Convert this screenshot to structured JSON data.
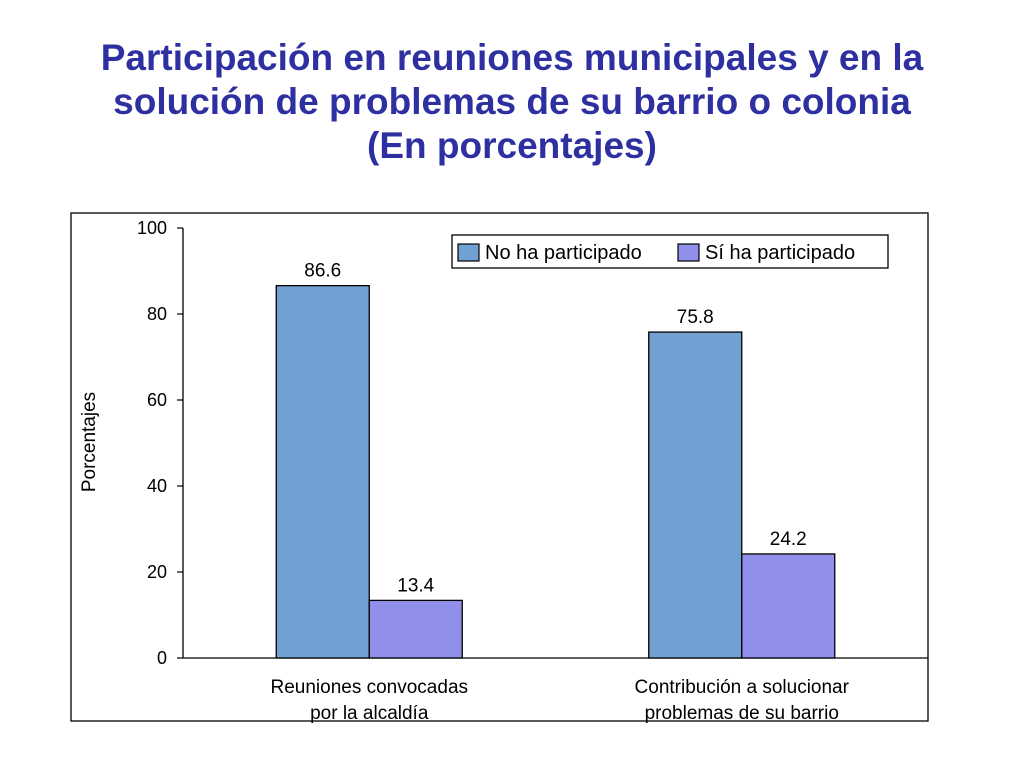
{
  "title": {
    "line1": "Participación en reuniones municipales y en la",
    "line2": "solución de problemas de su barrio o colonia",
    "line3": "(En porcentajes)"
  },
  "chart_data": {
    "type": "bar",
    "title": "",
    "xlabel": "",
    "ylabel": "Porcentajes",
    "ylim": [
      0,
      100
    ],
    "yticks": [
      "0",
      "20",
      "40",
      "60",
      "80",
      "100"
    ],
    "categories": [
      [
        "Reuniones convocadas",
        "por la alcaldía"
      ],
      [
        "Contribución a solucionar",
        "problemas de su barrio"
      ]
    ],
    "series": [
      {
        "name": "No ha participado",
        "values": [
          86.6,
          75.8
        ],
        "labels": [
          "86.6",
          "75.8"
        ],
        "color": "#71a0d2"
      },
      {
        "name": "Sí ha participado",
        "values": [
          13.4,
          24.2
        ],
        "labels": [
          "13.4",
          "24.2"
        ],
        "color": "#9090ea"
      }
    ],
    "grid": false,
    "legend_position": "top-right"
  }
}
